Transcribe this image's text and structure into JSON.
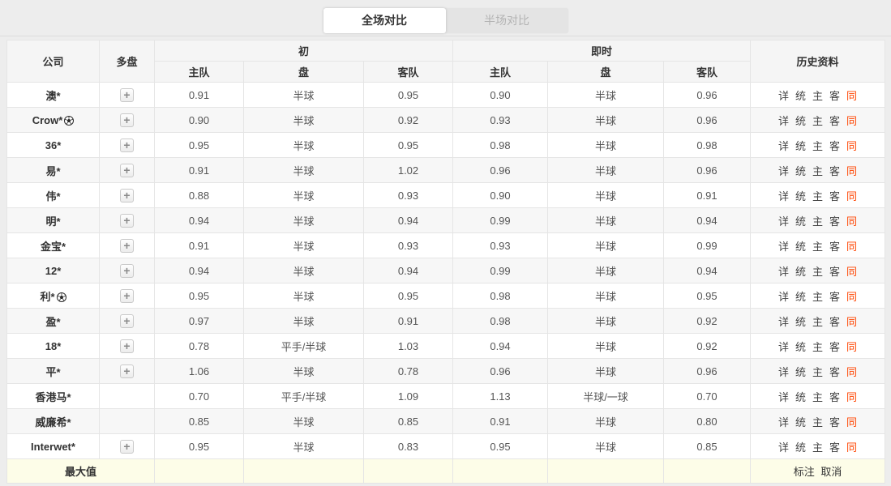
{
  "tabs": {
    "full": {
      "label": "全场对比",
      "active": true
    },
    "half": {
      "label": "半场对比",
      "active": false
    }
  },
  "table": {
    "header": {
      "company": "公司",
      "multi_odds": "多盘",
      "initial_group": "初",
      "live_group": "即时",
      "history": "历史资料",
      "home": "主队",
      "handicap": "盘",
      "away": "客队"
    },
    "multi_expand_symbol": "+",
    "history_links": [
      "详",
      "统",
      "主",
      "客",
      "同"
    ],
    "rows": [
      {
        "company": "澳*",
        "ball": false,
        "multi": true,
        "init_home": "0.91",
        "init_handicap": "半球",
        "init_away": "0.95",
        "live_home": "0.90",
        "live_handicap": "半球",
        "live_away": "0.96"
      },
      {
        "company": "Crow*",
        "ball": true,
        "multi": true,
        "init_home": "0.90",
        "init_handicap": "半球",
        "init_away": "0.92",
        "live_home": "0.93",
        "live_handicap": "半球",
        "live_away": "0.96"
      },
      {
        "company": "36*",
        "ball": false,
        "multi": true,
        "init_home": "0.95",
        "init_handicap": "半球",
        "init_away": "0.95",
        "live_home": "0.98",
        "live_handicap": "半球",
        "live_away": "0.98"
      },
      {
        "company": "易*",
        "ball": false,
        "multi": true,
        "init_home": "0.91",
        "init_handicap": "半球",
        "init_away": "1.02",
        "live_home": "0.96",
        "live_handicap": "半球",
        "live_away": "0.96"
      },
      {
        "company": "伟*",
        "ball": false,
        "multi": true,
        "init_home": "0.88",
        "init_handicap": "半球",
        "init_away": "0.93",
        "live_home": "0.90",
        "live_handicap": "半球",
        "live_away": "0.91"
      },
      {
        "company": "明*",
        "ball": false,
        "multi": true,
        "init_home": "0.94",
        "init_handicap": "半球",
        "init_away": "0.94",
        "live_home": "0.99",
        "live_handicap": "半球",
        "live_away": "0.94"
      },
      {
        "company": "金宝*",
        "ball": false,
        "multi": true,
        "init_home": "0.91",
        "init_handicap": "半球",
        "init_away": "0.93",
        "live_home": "0.93",
        "live_handicap": "半球",
        "live_away": "0.99"
      },
      {
        "company": "12*",
        "ball": false,
        "multi": true,
        "init_home": "0.94",
        "init_handicap": "半球",
        "init_away": "0.94",
        "live_home": "0.99",
        "live_handicap": "半球",
        "live_away": "0.94"
      },
      {
        "company": "利*",
        "ball": true,
        "multi": true,
        "init_home": "0.95",
        "init_handicap": "半球",
        "init_away": "0.95",
        "live_home": "0.98",
        "live_handicap": "半球",
        "live_away": "0.95"
      },
      {
        "company": "盈*",
        "ball": false,
        "multi": true,
        "init_home": "0.97",
        "init_handicap": "半球",
        "init_away": "0.91",
        "live_home": "0.98",
        "live_handicap": "半球",
        "live_away": "0.92"
      },
      {
        "company": "18*",
        "ball": false,
        "multi": true,
        "init_home": "0.78",
        "init_handicap": "平手/半球",
        "init_away": "1.03",
        "live_home": "0.94",
        "live_handicap": "半球",
        "live_away": "0.92"
      },
      {
        "company": "平*",
        "ball": false,
        "multi": true,
        "init_home": "1.06",
        "init_handicap": "半球",
        "init_away": "0.78",
        "live_home": "0.96",
        "live_handicap": "半球",
        "live_away": "0.96"
      },
      {
        "company": "香港马*",
        "ball": false,
        "multi": false,
        "init_home": "0.70",
        "init_handicap": "平手/半球",
        "init_away": "1.09",
        "live_home": "1.13",
        "live_handicap": "半球/一球",
        "live_away": "0.70"
      },
      {
        "company": "威廉希*",
        "ball": false,
        "multi": false,
        "init_home": "0.85",
        "init_handicap": "半球",
        "init_away": "0.85",
        "live_home": "0.91",
        "live_handicap": "半球",
        "live_away": "0.80"
      },
      {
        "company": "Interwet*",
        "ball": false,
        "multi": true,
        "init_home": "0.95",
        "init_handicap": "半球",
        "init_away": "0.83",
        "live_home": "0.95",
        "live_handicap": "半球",
        "live_away": "0.85"
      }
    ],
    "footer": {
      "label": "最大值",
      "mark": "标注",
      "cancel": "取消"
    }
  },
  "colors": {
    "page_bg": "#ededed",
    "header_bg": "#f5f5f5",
    "alt_row_bg": "#f7f7f7",
    "footer_bg": "#fdfde8",
    "accent_red": "#ff4400",
    "border": "#e5e5e5"
  }
}
